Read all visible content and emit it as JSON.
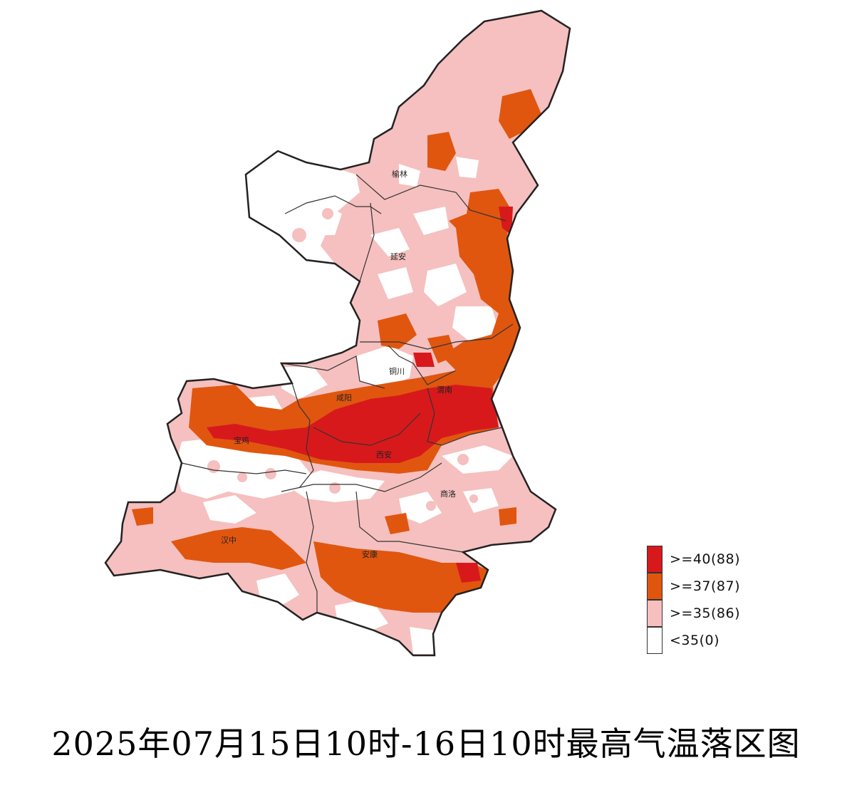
{
  "title": "2025年07月15日10时-16日10时最高气温落区图",
  "cities": [
    {
      "id": "yulin",
      "name": "榆林"
    },
    {
      "id": "yanan",
      "name": "延安"
    },
    {
      "id": "tongchuan",
      "name": "铜川"
    },
    {
      "id": "weinan",
      "name": "渭南"
    },
    {
      "id": "xianyang",
      "name": "咸阳"
    },
    {
      "id": "baoji",
      "name": "宝鸡"
    },
    {
      "id": "xian",
      "name": "西安"
    },
    {
      "id": "shangluo",
      "name": "商洛"
    },
    {
      "id": "hanzhong",
      "name": "汉中"
    },
    {
      "id": "ankang",
      "name": "安康"
    }
  ],
  "legend": [
    {
      "label": ">=40(88)",
      "color": "#d7191c",
      "threshold": ">=40",
      "count": 88
    },
    {
      "label": ">=37(87)",
      "color": "#e0560f",
      "threshold": ">=37",
      "count": 87
    },
    {
      "label": ">=35(86)",
      "color": "#f5c0bf",
      "threshold": ">=35",
      "count": 86
    },
    {
      "label": "<35(0)",
      "color": "#ffffff",
      "threshold": "<35",
      "count": 0
    }
  ],
  "colors": {
    "border": "#222222",
    "hot40": "#d7191c",
    "hot37": "#e0560f",
    "hot35": "#f5c0bf",
    "below35": "#ffffff"
  }
}
